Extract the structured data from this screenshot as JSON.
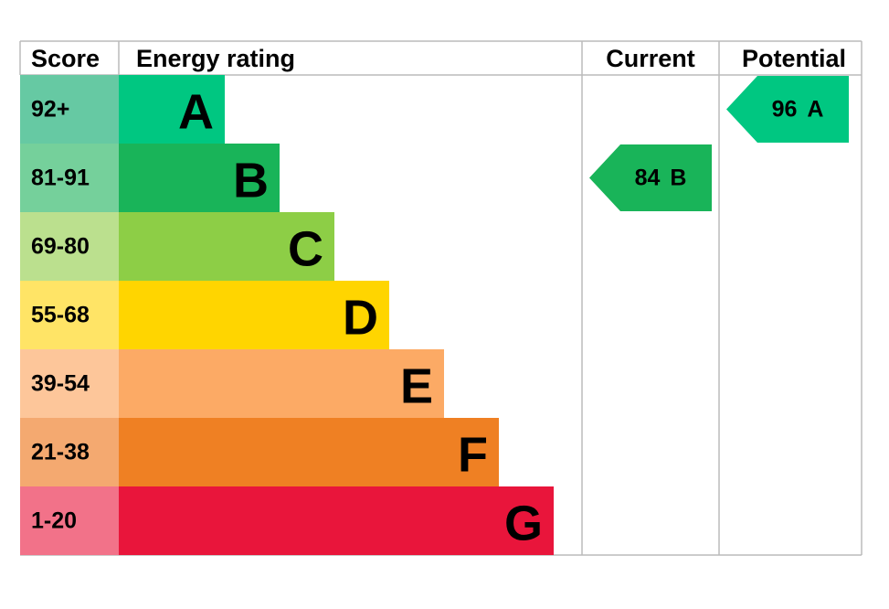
{
  "header": {
    "score": "Score",
    "rating": "Energy rating",
    "current": "Current",
    "potential": "Potential"
  },
  "rows": [
    {
      "score": "92+",
      "band": "A"
    },
    {
      "score": "81-91",
      "band": "B"
    },
    {
      "score": "69-80",
      "band": "C"
    },
    {
      "score": "55-68",
      "band": "D"
    },
    {
      "score": "39-54",
      "band": "E"
    },
    {
      "score": "21-38",
      "band": "F"
    },
    {
      "score": "1-20",
      "band": "G"
    }
  ],
  "current": {
    "value": "84",
    "band": "B"
  },
  "potential": {
    "value": "96",
    "band": "A"
  }
}
